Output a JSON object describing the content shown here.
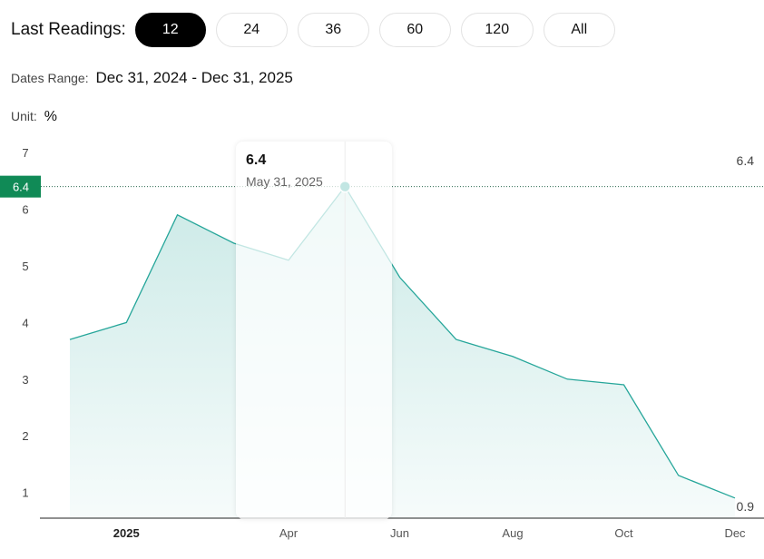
{
  "toolbar": {
    "label": "Last Readings:",
    "buttons": [
      "12",
      "24",
      "36",
      "60",
      "120",
      "All"
    ],
    "active": "12"
  },
  "dates_range": {
    "label": "Dates Range:",
    "value": "Dec 31, 2024 - Dec 31, 2025"
  },
  "unit": {
    "label": "Unit:",
    "value": "%"
  },
  "tooltip": {
    "value": "6.4",
    "date": "May 31, 2025"
  },
  "colors": {
    "line": "#26a69a",
    "marker_badge": "#108a56",
    "active_button": "#000000"
  },
  "chart_data": {
    "type": "area",
    "title": "",
    "xlabel": "",
    "ylabel": "",
    "x": [
      "2024-12-31",
      "2025-01-31",
      "2025-02-28",
      "2025-03-31",
      "2025-04-30",
      "2025-05-31",
      "2025-06-30",
      "2025-07-31",
      "2025-08-31",
      "2025-09-30",
      "2025-10-31",
      "2025-11-30",
      "2025-12-31"
    ],
    "series": [
      {
        "values": [
          3.7,
          4.0,
          5.9,
          5.4,
          5.1,
          6.4,
          4.8,
          3.7,
          3.4,
          3.0,
          2.9,
          1.3,
          0.9
        ]
      }
    ],
    "ylim": [
      0.6,
      7.2
    ],
    "yticks": [
      "1",
      "2",
      "3",
      "4",
      "5",
      "6",
      "7"
    ],
    "xticks": [
      {
        "label": "2025",
        "date": "2025-01-31",
        "bold": true
      },
      {
        "label": "Apr",
        "date": "2025-04-30",
        "bold": false
      },
      {
        "label": "Jun",
        "date": "2025-06-30",
        "bold": false
      },
      {
        "label": "Aug",
        "date": "2025-08-31",
        "bold": false
      },
      {
        "label": "Oct",
        "date": "2025-10-31",
        "bold": false
      },
      {
        "label": "Dec",
        "date": "2025-12-31",
        "bold": false
      }
    ],
    "hover_index": 5,
    "crosshair_value": "6.4",
    "crosshair_right_label": "6.4",
    "last_value_label": "0.9",
    "grid": false
  }
}
